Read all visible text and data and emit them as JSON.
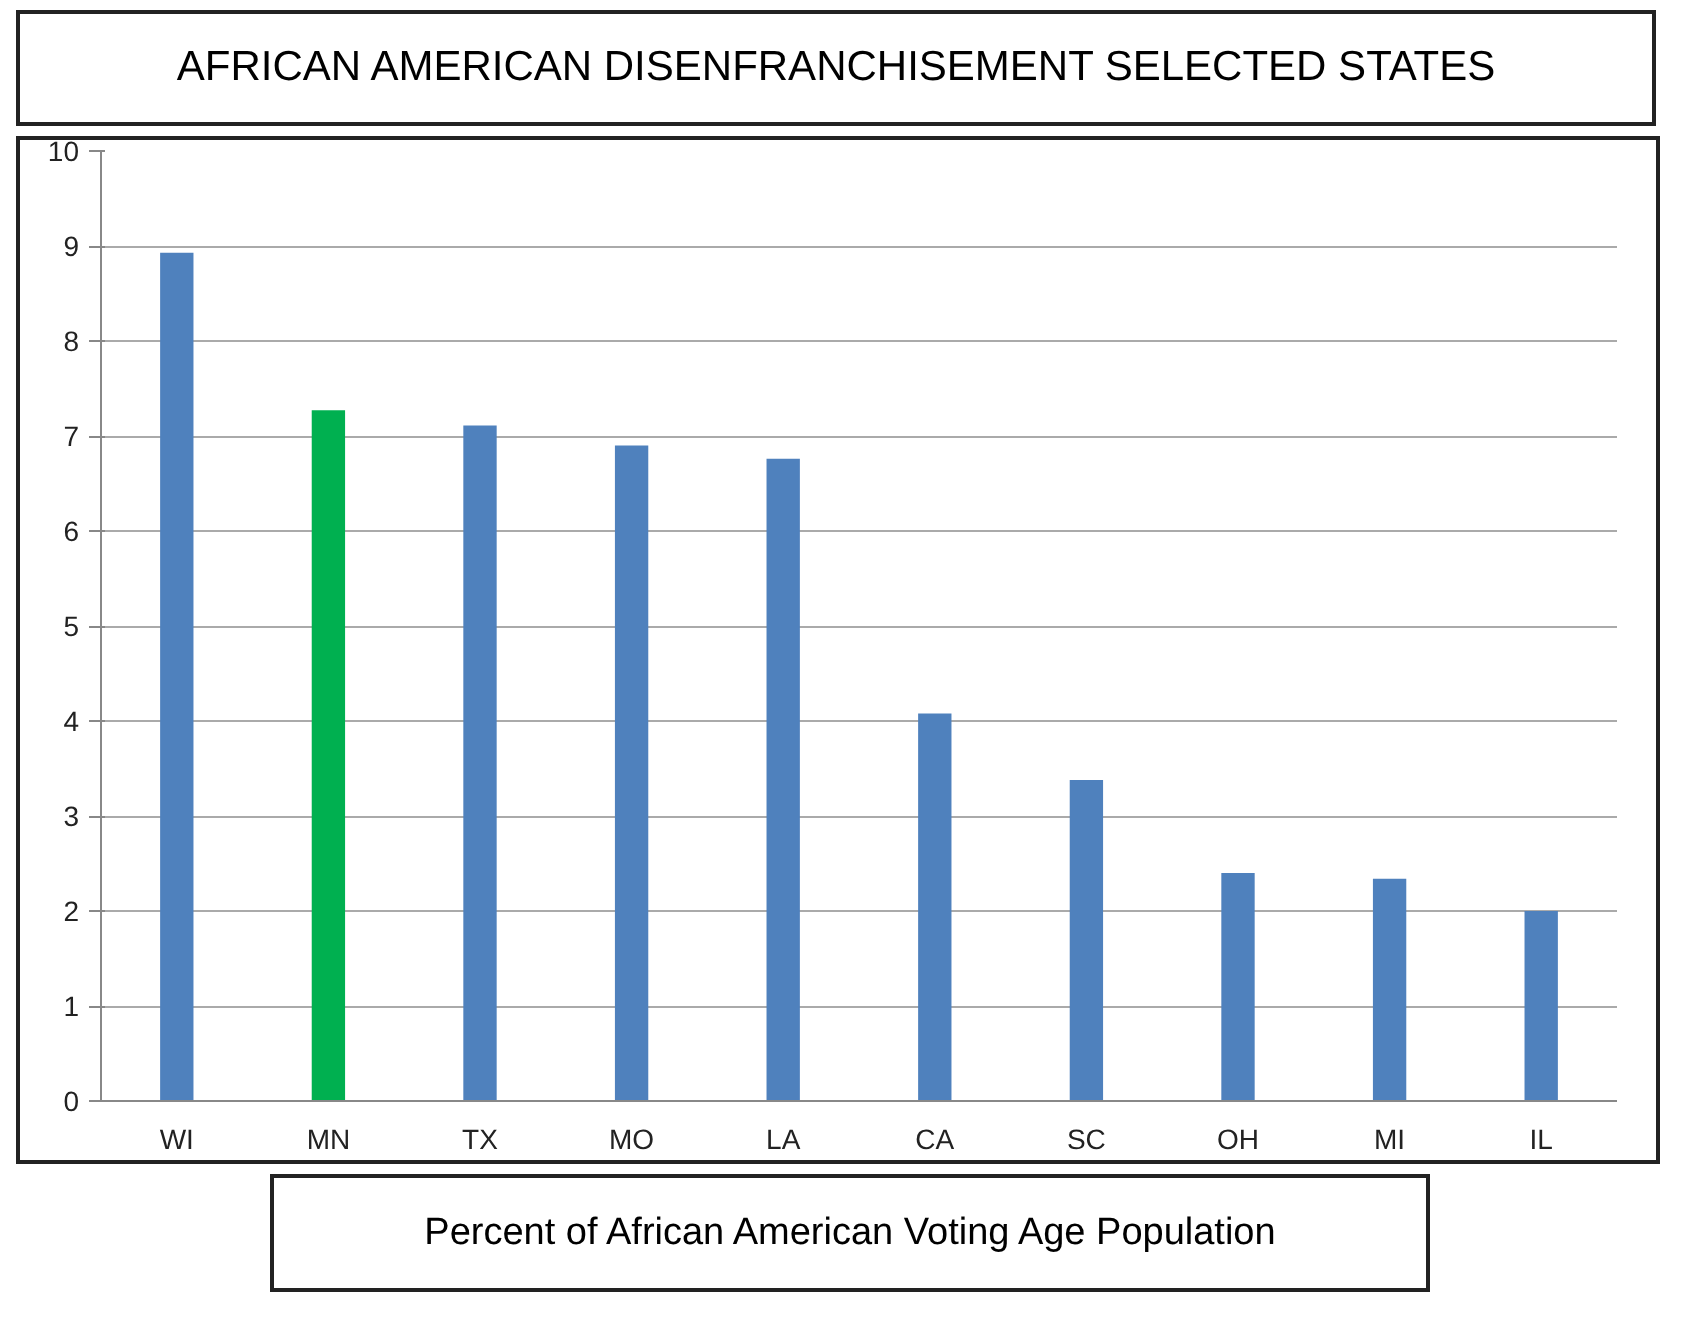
{
  "chart_data": {
    "type": "bar",
    "title": "AFRICAN AMERICAN DISENFRANCHISEMENT SELECTED STATES",
    "xlabel": "Percent of African American Voting Age Population",
    "categories": [
      "WI",
      "MN",
      "TX",
      "MO",
      "LA",
      "CA",
      "SC",
      "OH",
      "MI",
      "IL"
    ],
    "values": [
      8.93,
      7.27,
      7.11,
      6.9,
      6.76,
      4.08,
      3.38,
      2.4,
      2.34,
      2.0
    ],
    "colors": [
      "#4f81bd",
      "#00b050",
      "#4f81bd",
      "#4f81bd",
      "#4f81bd",
      "#4f81bd",
      "#4f81bd",
      "#4f81bd",
      "#4f81bd",
      "#4f81bd"
    ],
    "ylim": [
      0,
      10
    ],
    "yticks": [
      0,
      1,
      2,
      3,
      4,
      5,
      6,
      7,
      8,
      9,
      10
    ],
    "grid": "y"
  }
}
